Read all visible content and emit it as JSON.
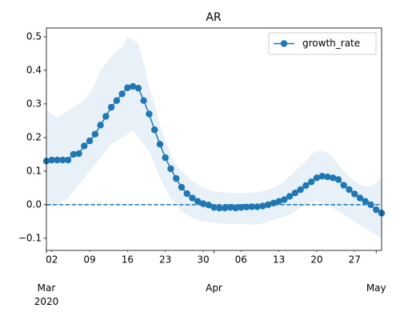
{
  "chart_data": {
    "type": "line",
    "title": "AR",
    "x": [
      "2020-03-01",
      "2020-03-02",
      "2020-03-03",
      "2020-03-04",
      "2020-03-05",
      "2020-03-06",
      "2020-03-07",
      "2020-03-08",
      "2020-03-09",
      "2020-03-10",
      "2020-03-11",
      "2020-03-12",
      "2020-03-13",
      "2020-03-14",
      "2020-03-15",
      "2020-03-16",
      "2020-03-17",
      "2020-03-18",
      "2020-03-19",
      "2020-03-20",
      "2020-03-21",
      "2020-03-22",
      "2020-03-23",
      "2020-03-24",
      "2020-03-25",
      "2020-03-26",
      "2020-03-27",
      "2020-03-28",
      "2020-03-29",
      "2020-03-30",
      "2020-03-31",
      "2020-04-01",
      "2020-04-02",
      "2020-04-03",
      "2020-04-04",
      "2020-04-05",
      "2020-04-06",
      "2020-04-07",
      "2020-04-08",
      "2020-04-09",
      "2020-04-10",
      "2020-04-11",
      "2020-04-12",
      "2020-04-13",
      "2020-04-14",
      "2020-04-15",
      "2020-04-16",
      "2020-04-17",
      "2020-04-18",
      "2020-04-19",
      "2020-04-20",
      "2020-04-21",
      "2020-04-22",
      "2020-04-23",
      "2020-04-24",
      "2020-04-25",
      "2020-04-26",
      "2020-04-27",
      "2020-04-28",
      "2020-04-29",
      "2020-04-30",
      "2020-05-01",
      "2020-05-02"
    ],
    "series": [
      {
        "name": "growth_rate",
        "color": "#1f77b4",
        "values": [
          0.13,
          0.133,
          0.133,
          0.133,
          0.133,
          0.15,
          0.152,
          0.175,
          0.19,
          0.21,
          0.237,
          0.263,
          0.29,
          0.31,
          0.33,
          0.348,
          0.352,
          0.347,
          0.31,
          0.27,
          0.223,
          0.18,
          0.14,
          0.107,
          0.078,
          0.052,
          0.033,
          0.02,
          0.01,
          0.003,
          -0.001,
          -0.008,
          -0.01,
          -0.01,
          -0.008,
          -0.01,
          -0.008,
          -0.007,
          -0.006,
          -0.006,
          -0.004,
          0.0,
          0.005,
          0.01,
          0.015,
          0.025,
          0.035,
          0.045,
          0.057,
          0.068,
          0.08,
          0.085,
          0.083,
          0.08,
          0.075,
          0.058,
          0.045,
          0.032,
          0.02,
          0.01,
          0.0,
          -0.015,
          -0.025
        ]
      }
    ],
    "band": {
      "color": "#1f77b4",
      "upper": [
        0.28,
        0.27,
        0.26,
        0.27,
        0.28,
        0.29,
        0.3,
        0.31,
        0.33,
        0.36,
        0.4,
        0.42,
        0.44,
        0.46,
        0.47,
        0.5,
        0.49,
        0.48,
        0.42,
        0.35,
        0.3,
        0.24,
        0.19,
        0.15,
        0.12,
        0.1,
        0.085,
        0.07,
        0.06,
        0.05,
        0.045,
        0.04,
        0.038,
        0.036,
        0.035,
        0.035,
        0.035,
        0.035,
        0.036,
        0.038,
        0.04,
        0.045,
        0.05,
        0.06,
        0.07,
        0.085,
        0.1,
        0.115,
        0.13,
        0.15,
        0.16,
        0.16,
        0.155,
        0.14,
        0.12,
        0.1,
        0.085,
        0.07,
        0.06,
        0.055,
        0.055,
        0.065,
        0.08
      ],
      "lower": [
        0.0,
        -0.005,
        0.0,
        0.01,
        0.02,
        0.04,
        0.06,
        0.08,
        0.1,
        0.12,
        0.14,
        0.16,
        0.18,
        0.19,
        0.2,
        0.21,
        0.22,
        0.2,
        0.18,
        0.16,
        0.12,
        0.08,
        0.05,
        0.02,
        0.0,
        -0.02,
        -0.03,
        -0.04,
        -0.045,
        -0.05,
        -0.052,
        -0.055,
        -0.055,
        -0.056,
        -0.057,
        -0.057,
        -0.058,
        -0.058,
        -0.06,
        -0.06,
        -0.055,
        -0.05,
        -0.045,
        -0.04,
        -0.035,
        -0.03,
        -0.02,
        -0.01,
        0.0,
        0.005,
        0.01,
        0.005,
        0.0,
        -0.01,
        -0.02,
        -0.03,
        -0.04,
        -0.05,
        -0.06,
        -0.07,
        -0.08,
        -0.09,
        -0.1
      ]
    },
    "reference_line": {
      "y": 0,
      "color": "#1f77b4"
    },
    "xlim": [
      "2020-03-01",
      "2020-05-02"
    ],
    "xticks": [
      {
        "value": "2020-03-02",
        "label": "02"
      },
      {
        "value": "2020-03-09",
        "label": "09"
      },
      {
        "value": "2020-03-16",
        "label": "16"
      },
      {
        "value": "2020-03-23",
        "label": "23"
      },
      {
        "value": "2020-03-30",
        "label": "30"
      },
      {
        "value": "2020-04-06",
        "label": "06"
      },
      {
        "value": "2020-04-13",
        "label": "13"
      },
      {
        "value": "2020-04-20",
        "label": "20"
      },
      {
        "value": "2020-04-27",
        "label": "27"
      }
    ],
    "xticks_major": [
      {
        "value": "2020-03-01",
        "label": "Mar\n2020"
      },
      {
        "value": "2020-04-01",
        "label": "Apr"
      },
      {
        "value": "2020-05-01",
        "label": "May"
      }
    ],
    "ylim": [
      -0.136,
      0.526
    ],
    "yticks": [
      {
        "value": -0.1,
        "label": "−0.1"
      },
      {
        "value": 0,
        "label": "0.0"
      },
      0.1,
      0.2,
      0.3,
      0.4,
      0.5
    ],
    "legend": "upper right"
  }
}
